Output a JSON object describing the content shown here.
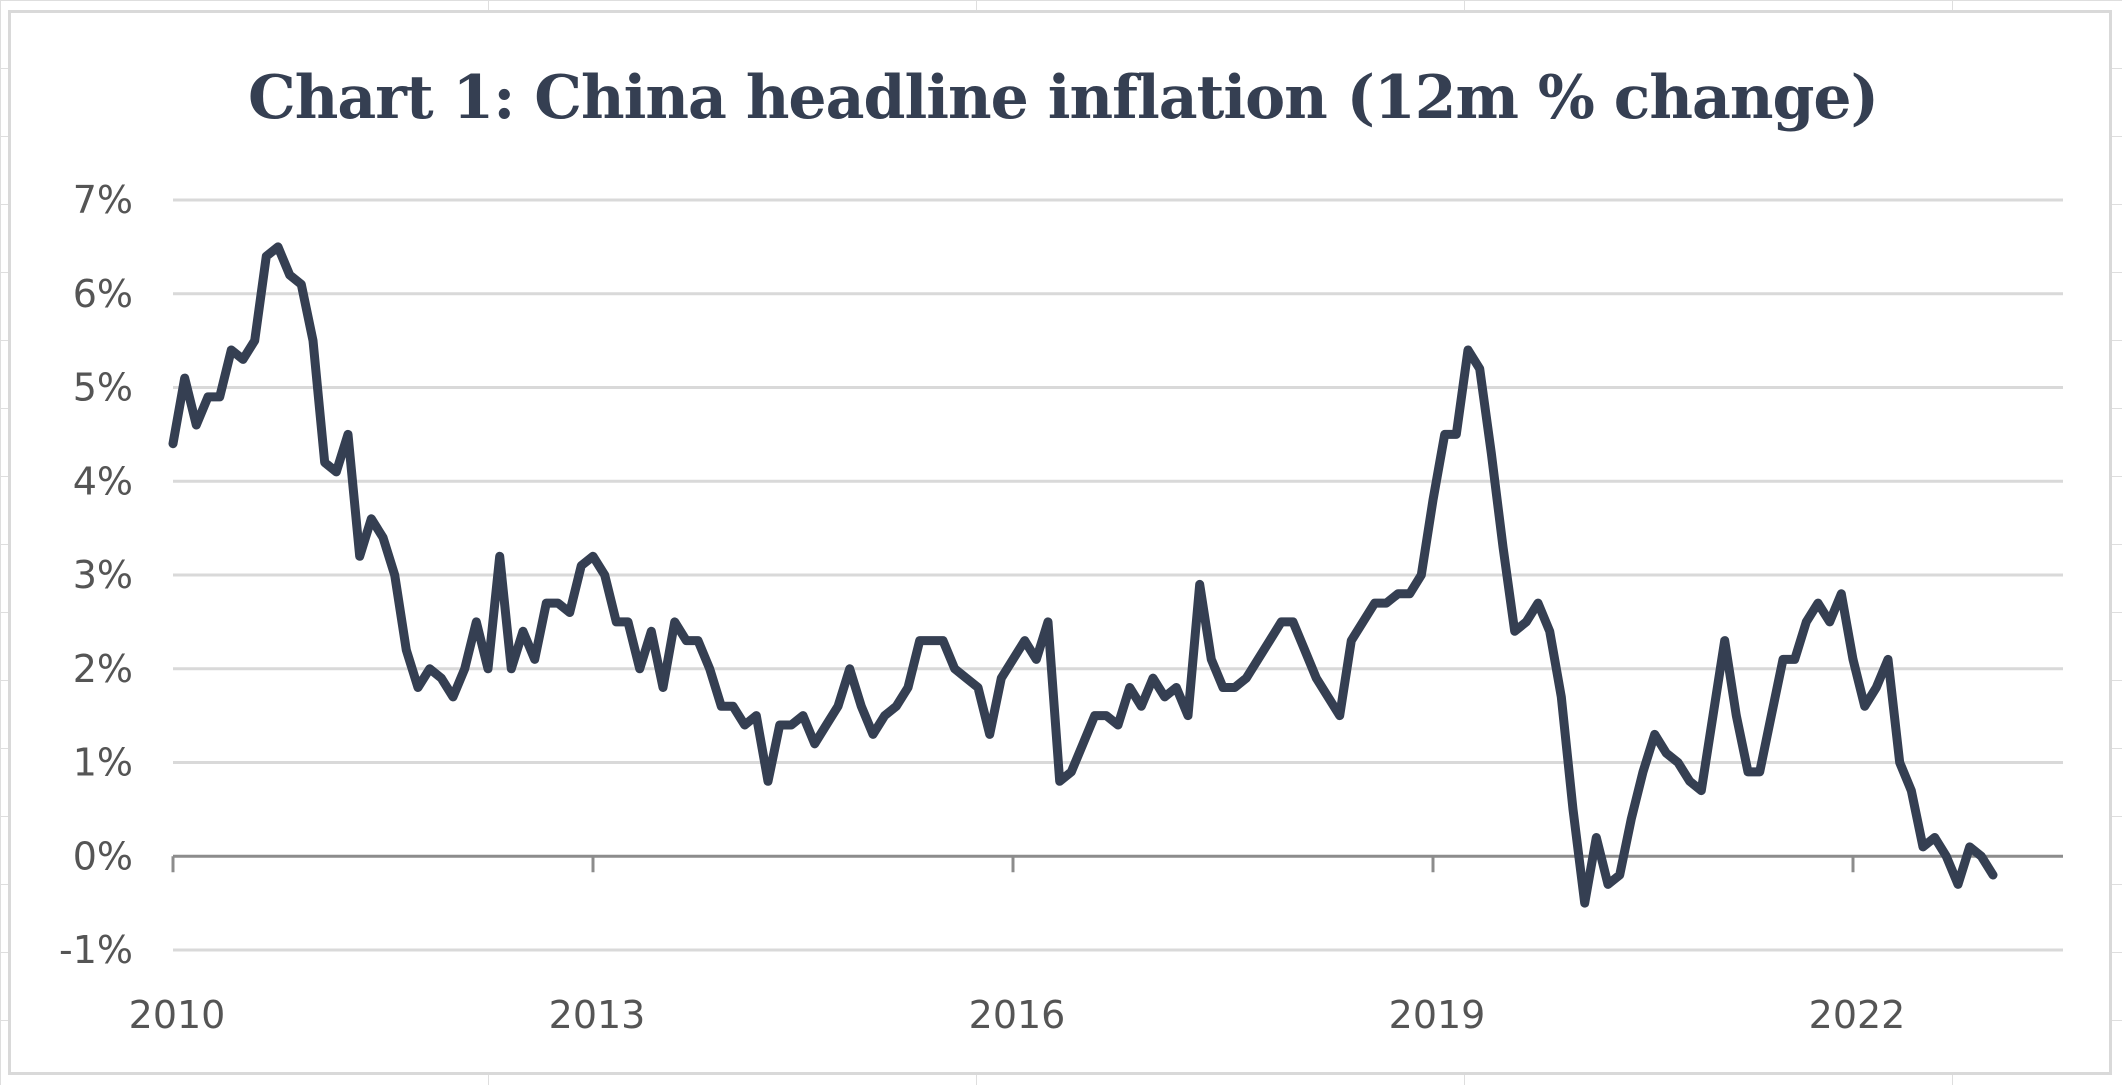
{
  "chart_data": {
    "type": "line",
    "title": "Chart 1: China headline inflation (12m % change)",
    "xlabel": "",
    "ylabel": "",
    "xlim": [
      2010.0,
      2023.5
    ],
    "ylim": [
      -1,
      7
    ],
    "grid": true,
    "legend": "none",
    "x_ticks": [
      {
        "value": 2010,
        "label": "2010"
      },
      {
        "value": 2013,
        "label": "2013"
      },
      {
        "value": 2016,
        "label": "2016"
      },
      {
        "value": 2019,
        "label": "2019"
      },
      {
        "value": 2022,
        "label": "2022"
      }
    ],
    "y_ticks": [
      {
        "value": 7,
        "label": "7%"
      },
      {
        "value": 6,
        "label": "6%"
      },
      {
        "value": 5,
        "label": "5%"
      },
      {
        "value": 4,
        "label": "4%"
      },
      {
        "value": 3,
        "label": "3%"
      },
      {
        "value": 2,
        "label": "2%"
      },
      {
        "value": 1,
        "label": "1%"
      },
      {
        "value": 0,
        "label": "0%"
      },
      {
        "value": -1,
        "label": "-1%"
      }
    ],
    "line_color": "#353f52",
    "series": [
      {
        "x_start": "2010-01",
        "frequency": "monthly",
        "values": [
          4.4,
          5.1,
          4.6,
          4.9,
          4.9,
          5.4,
          5.3,
          5.5,
          6.4,
          6.5,
          6.2,
          6.1,
          5.5,
          4.2,
          4.1,
          4.5,
          3.2,
          3.6,
          3.4,
          3.0,
          2.2,
          1.8,
          2.0,
          1.9,
          1.7,
          2.0,
          2.5,
          2.0,
          3.2,
          2.0,
          2.4,
          2.1,
          2.7,
          2.7,
          2.6,
          3.1,
          3.2,
          3.0,
          2.5,
          2.5,
          2.0,
          2.4,
          1.8,
          2.5,
          2.3,
          2.3,
          2.0,
          1.6,
          1.6,
          1.4,
          1.5,
          0.8,
          1.4,
          1.4,
          1.5,
          1.2,
          1.4,
          1.6,
          2.0,
          1.6,
          1.3,
          1.5,
          1.6,
          1.8,
          2.3,
          2.3,
          2.3,
          2.0,
          1.9,
          1.8,
          1.3,
          1.9,
          2.1,
          2.3,
          2.1,
          2.5,
          0.8,
          0.9,
          1.2,
          1.5,
          1.5,
          1.4,
          1.8,
          1.6,
          1.9,
          1.7,
          1.8,
          1.5,
          2.9,
          2.1,
          1.8,
          1.8,
          1.9,
          2.1,
          2.3,
          2.5,
          2.5,
          2.2,
          1.9,
          1.7,
          1.5,
          2.3,
          2.5,
          2.7,
          2.7,
          2.8,
          2.8,
          3.0,
          3.8,
          4.5,
          4.5,
          5.4,
          5.2,
          4.3,
          3.3,
          2.4,
          2.5,
          2.7,
          2.4,
          1.7,
          0.5,
          -0.5,
          0.2,
          -0.3,
          -0.2,
          0.4,
          0.9,
          1.3,
          1.1,
          1.0,
          0.8,
          0.7,
          1.5,
          2.3,
          1.5,
          0.9,
          0.9,
          1.5,
          2.1,
          2.1,
          2.5,
          2.7,
          2.5,
          2.8,
          2.1,
          1.6,
          1.8,
          2.1,
          1.0,
          0.7,
          0.1,
          0.2,
          0.0,
          -0.3,
          0.1,
          0.0,
          -0.2
        ]
      }
    ]
  }
}
